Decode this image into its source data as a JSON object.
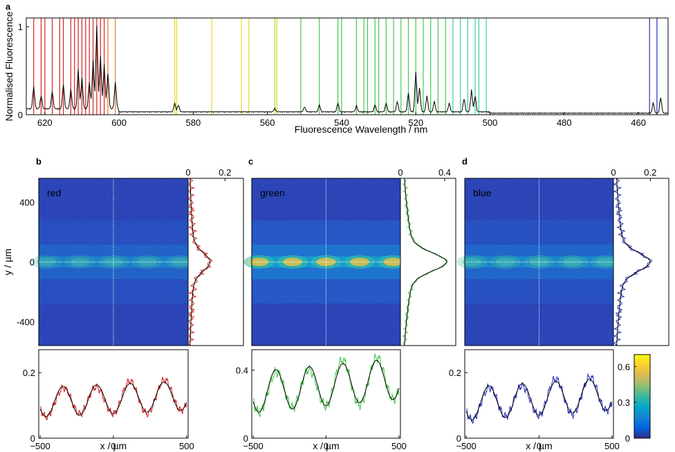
{
  "figure": {
    "panel_letters": [
      "a",
      "b",
      "c",
      "d"
    ]
  },
  "chart_data": [
    {
      "panel": "a",
      "type": "line",
      "xlabel": "Fluorescence Wavelength / nm",
      "ylabel": "Normalised Fluorescence",
      "xlim": [
        625,
        452
      ],
      "ylim": [
        0,
        1.1
      ],
      "x_ticks": [
        620,
        600,
        580,
        560,
        540,
        520,
        500,
        480,
        460
      ],
      "y_ticks": [
        0,
        1
      ],
      "grid": false,
      "line_colors": {
        "red": "#d62020",
        "orange": "#e87522",
        "yellow": "#e8d820",
        "green": "#45c84a",
        "teal": "#38d0a0",
        "blue": "#2030c0",
        "spectrum": "#000000"
      },
      "reference_lines": {
        "red": [
          623,
          621,
          620,
          618,
          616,
          615,
          613,
          612,
          611,
          610,
          609,
          608,
          607,
          606,
          605,
          604
        ],
        "orange": [
          603,
          601
        ],
        "yellow": [
          585,
          584.5,
          575,
          567,
          565
        ],
        "yellow_green": [
          558,
          557.5
        ],
        "green": [
          551,
          546,
          541,
          540,
          536,
          534,
          533,
          531,
          530,
          528,
          526,
          524,
          522,
          520,
          518,
          516,
          514,
          512,
          510,
          508,
          506,
          504,
          503,
          501
        ],
        "blue": [
          457,
          455
        ]
      },
      "peaks": [
        {
          "x": 623,
          "y": 0.25
        },
        {
          "x": 621,
          "y": 0.15
        },
        {
          "x": 618,
          "y": 0.2
        },
        {
          "x": 615,
          "y": 0.28
        },
        {
          "x": 613,
          "y": 0.22
        },
        {
          "x": 611,
          "y": 0.45
        },
        {
          "x": 610,
          "y": 0.35
        },
        {
          "x": 608,
          "y": 0.3
        },
        {
          "x": 607,
          "y": 0.55
        },
        {
          "x": 606,
          "y": 0.95
        },
        {
          "x": 605,
          "y": 0.6
        },
        {
          "x": 604,
          "y": 0.5
        },
        {
          "x": 603,
          "y": 0.4
        },
        {
          "x": 601,
          "y": 0.3
        },
        {
          "x": 585,
          "y": 0.1
        },
        {
          "x": 584,
          "y": 0.08
        },
        {
          "x": 558,
          "y": 0.04
        },
        {
          "x": 550,
          "y": 0.06
        },
        {
          "x": 546,
          "y": 0.08
        },
        {
          "x": 541,
          "y": 0.1
        },
        {
          "x": 536,
          "y": 0.07
        },
        {
          "x": 531,
          "y": 0.08
        },
        {
          "x": 528,
          "y": 0.1
        },
        {
          "x": 525,
          "y": 0.12
        },
        {
          "x": 522,
          "y": 0.22
        },
        {
          "x": 520,
          "y": 0.45
        },
        {
          "x": 519,
          "y": 0.28
        },
        {
          "x": 517,
          "y": 0.18
        },
        {
          "x": 515,
          "y": 0.12
        },
        {
          "x": 511,
          "y": 0.1
        },
        {
          "x": 507,
          "y": 0.15
        },
        {
          "x": 505,
          "y": 0.25
        },
        {
          "x": 504,
          "y": 0.18
        },
        {
          "x": 456,
          "y": 0.12
        },
        {
          "x": 454,
          "y": 0.18
        }
      ]
    },
    {
      "panel": "b",
      "type": "heatmap",
      "label": "red",
      "ylabel": "y / µm",
      "ylim": [
        -560,
        560
      ],
      "y_ticks": [
        400,
        0,
        -400
      ],
      "profile_ticks": [
        0,
        0.2
      ],
      "profile_xlim": [
        0,
        0.3
      ],
      "profile_peak": 0.12,
      "stripe_intensity": 0.45,
      "color": "#d62020"
    },
    {
      "panel": "c",
      "type": "heatmap",
      "label": "green",
      "ylim": [
        -560,
        560
      ],
      "profile_ticks": [
        0,
        0.4
      ],
      "profile_xlim": [
        0,
        0.5
      ],
      "profile_peak": 0.42,
      "stripe_intensity": 1.0,
      "color": "#45c84a"
    },
    {
      "panel": "d",
      "type": "heatmap",
      "label": "blue",
      "ylim": [
        -560,
        560
      ],
      "profile_ticks": [
        0,
        0.2
      ],
      "profile_xlim": [
        0,
        0.3
      ],
      "profile_peak": 0.2,
      "stripe_intensity": 0.55,
      "color": "#2030c0"
    },
    {
      "panel": "b-bottom",
      "type": "line",
      "xlabel": "x / µm",
      "xlim": [
        -510,
        510
      ],
      "x_ticks": [
        -500,
        0,
        500
      ],
      "ylim": [
        0,
        0.27
      ],
      "y_ticks": [
        0,
        0.2
      ],
      "fit": {
        "mean": 0.12,
        "amp": 0.045,
        "period": 230,
        "phase": 0,
        "slope": 2e-05
      },
      "color": "#d62020"
    },
    {
      "panel": "c-bottom",
      "type": "line",
      "xlabel": "x / µm",
      "xlim": [
        -510,
        510
      ],
      "x_ticks": [
        -500,
        0,
        500
      ],
      "ylim": [
        0,
        0.52
      ],
      "y_ticks": [
        0,
        0.4
      ],
      "fit": {
        "mean": 0.31,
        "amp": 0.12,
        "period": 230,
        "phase": 0,
        "slope": 8e-05
      },
      "color": "#45c84a"
    },
    {
      "panel": "d-bottom",
      "type": "line",
      "xlabel": "x / µm",
      "xlim": [
        -510,
        510
      ],
      "x_ticks": [
        -500,
        0,
        500
      ],
      "ylim": [
        0,
        0.27
      ],
      "y_ticks": [
        0,
        0.2
      ],
      "fit": {
        "mean": 0.12,
        "amp": 0.05,
        "period": 230,
        "phase": 0,
        "slope": 3e-05
      },
      "color": "#2030c0"
    },
    {
      "panel": "colorbar",
      "type": "heatmap",
      "range": [
        0,
        0.7
      ],
      "ticks": [
        0,
        0.3,
        0.6
      ],
      "colormap": [
        "#352a87",
        "#0363e1",
        "#1485d4",
        "#06a7c6",
        "#38b99e",
        "#92bf73",
        "#d9ba56",
        "#fcce2e",
        "#f9fb0e"
      ]
    }
  ]
}
